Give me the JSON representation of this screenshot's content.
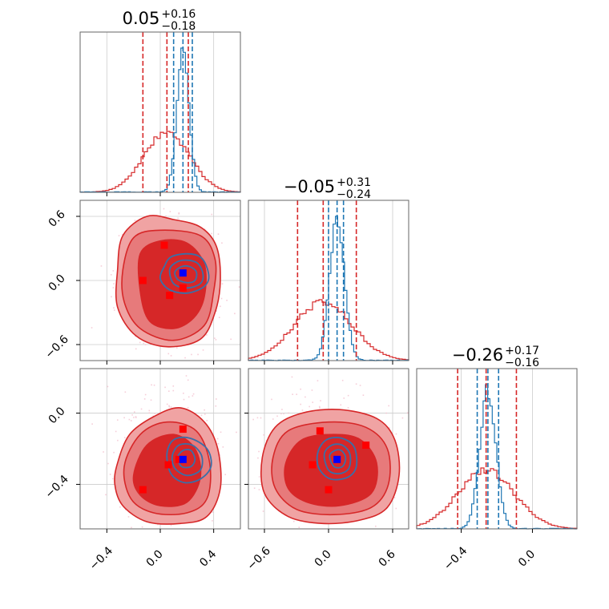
{
  "chart_data": {
    "type": "corner",
    "colors": {
      "set_a": "#d62728",
      "set_b": "#1f77b4",
      "set_a_light": "#f0a3a3",
      "set_a_mid": "#e77a7b",
      "marker_square": "#ff0000",
      "marker_truth": "#0000ff",
      "grid": "#cccccc"
    },
    "parameters": [
      {
        "title_value": "0.05",
        "title_plus": "+0.16",
        "title_minus": "−0.18",
        "range": [
          -0.6,
          0.6
        ],
        "ticks": [
          -0.4,
          0.0,
          0.4
        ],
        "tick_labels": [
          "−0.4",
          "0.0",
          "0.4"
        ],
        "dist_a": {
          "mean": 0.05,
          "sd": 0.17
        },
        "dist_b": {
          "mean": 0.17,
          "sd": 0.045
        },
        "quantiles_a": [
          -0.13,
          0.05,
          0.21
        ],
        "quantiles_b": [
          0.1,
          0.17,
          0.24
        ]
      },
      {
        "title_value": "−0.05",
        "title_plus": "+0.31",
        "title_minus": "−0.24",
        "range": [
          -0.75,
          0.75
        ],
        "ticks": [
          -0.6,
          0.0,
          0.6
        ],
        "tick_labels": [
          "−0.6",
          "0.0",
          "0.6"
        ],
        "dist_a": {
          "mean": -0.05,
          "sd": 0.27
        },
        "dist_b": {
          "mean": 0.08,
          "sd": 0.07
        },
        "quantiles_a": [
          -0.29,
          -0.05,
          0.26
        ],
        "quantiles_b": [
          0.0,
          0.08,
          0.14
        ]
      },
      {
        "title_value": "−0.26",
        "title_plus": "+0.17",
        "title_minus": "−0.16",
        "range": [
          -0.65,
          0.25
        ],
        "ticks": [
          -0.4,
          0.0
        ],
        "tick_labels": [
          "−0.4",
          "0.0"
        ],
        "dist_a": {
          "mean": -0.26,
          "sd": 0.16
        },
        "dist_b": {
          "mean": -0.25,
          "sd": 0.045
        },
        "quantiles_a": [
          -0.42,
          -0.26,
          -0.09
        ],
        "quantiles_b": [
          -0.31,
          -0.25,
          -0.19
        ]
      }
    ],
    "pairs": [
      {
        "x_param": 0,
        "y_param": 1,
        "truth": [
          0.17,
          0.07
        ],
        "markers": [
          [
            0.03,
            0.33
          ],
          [
            -0.13,
            0.0
          ],
          [
            0.07,
            -0.14
          ],
          [
            0.17,
            -0.07
          ]
        ],
        "contours_a": [
          [
            [
              -0.32,
              0.1
            ],
            [
              -0.28,
              0.42
            ],
            [
              -0.1,
              0.6
            ],
            [
              0.1,
              0.57
            ],
            [
              0.3,
              0.5
            ],
            [
              0.42,
              0.32
            ],
            [
              0.45,
              0.0
            ],
            [
              0.41,
              -0.3
            ],
            [
              0.3,
              -0.55
            ],
            [
              0.05,
              -0.62
            ],
            [
              -0.18,
              -0.52
            ],
            [
              -0.32,
              -0.25
            ]
          ],
          [
            [
              -0.28,
              0.1
            ],
            [
              -0.2,
              0.4
            ],
            [
              0.0,
              0.47
            ],
            [
              0.3,
              0.42
            ],
            [
              0.41,
              0.2
            ],
            [
              0.4,
              -0.1
            ],
            [
              0.33,
              -0.42
            ],
            [
              0.1,
              -0.56
            ],
            [
              -0.15,
              -0.45
            ],
            [
              -0.27,
              -0.2
            ]
          ],
          [
            [
              -0.15,
              0.25
            ],
            [
              0.0,
              0.37
            ],
            [
              0.2,
              0.35
            ],
            [
              0.33,
              0.15
            ],
            [
              0.33,
              -0.15
            ],
            [
              0.25,
              -0.35
            ],
            [
              0.1,
              -0.45
            ],
            [
              -0.08,
              -0.38
            ],
            [
              -0.15,
              -0.1
            ]
          ]
        ],
        "contours_b": [
          [
            [
              0.03,
              0.13
            ],
            [
              0.08,
              0.22
            ],
            [
              0.2,
              0.25
            ],
            [
              0.3,
              0.22
            ],
            [
              0.35,
              0.12
            ],
            [
              0.36,
              0.0
            ],
            [
              0.3,
              -0.08
            ],
            [
              0.18,
              -0.12
            ],
            [
              0.06,
              -0.08
            ],
            [
              0.0,
              0.02
            ]
          ],
          [
            [
              0.07,
              0.1
            ],
            [
              0.12,
              0.17
            ],
            [
              0.2,
              0.19
            ],
            [
              0.28,
              0.16
            ],
            [
              0.32,
              0.06
            ],
            [
              0.3,
              -0.03
            ],
            [
              0.2,
              -0.07
            ],
            [
              0.1,
              -0.03
            ]
          ],
          [
            [
              0.11,
              0.08
            ],
            [
              0.16,
              0.13
            ],
            [
              0.22,
              0.13
            ],
            [
              0.27,
              0.08
            ],
            [
              0.26,
              0.0
            ],
            [
              0.2,
              -0.02
            ],
            [
              0.13,
              0.01
            ]
          ]
        ]
      },
      {
        "x_param": 0,
        "y_param": 2,
        "truth": [
          0.17,
          -0.26
        ],
        "markers": [
          [
            0.17,
            -0.09
          ],
          [
            0.06,
            -0.29
          ],
          [
            -0.13,
            -0.43
          ],
          [
            0.14,
            -0.26
          ]
        ],
        "contours_a": [
          [
            [
              -0.32,
              -0.28
            ],
            [
              -0.23,
              -0.12
            ],
            [
              -0.05,
              -0.02
            ],
            [
              0.15,
              0.03
            ],
            [
              0.33,
              -0.05
            ],
            [
              0.43,
              -0.2
            ],
            [
              0.45,
              -0.42
            ],
            [
              0.35,
              -0.58
            ],
            [
              0.15,
              -0.62
            ],
            [
              -0.1,
              -0.61
            ],
            [
              -0.28,
              -0.52
            ],
            [
              -0.34,
              -0.4
            ]
          ],
          [
            [
              -0.27,
              -0.3
            ],
            [
              -0.15,
              -0.12
            ],
            [
              0.05,
              -0.05
            ],
            [
              0.27,
              -0.1
            ],
            [
              0.37,
              -0.28
            ],
            [
              0.35,
              -0.48
            ],
            [
              0.2,
              -0.56
            ],
            [
              -0.05,
              -0.56
            ],
            [
              -0.22,
              -0.48
            ]
          ],
          [
            [
              -0.2,
              -0.35
            ],
            [
              -0.1,
              -0.18
            ],
            [
              0.1,
              -0.12
            ],
            [
              0.26,
              -0.2
            ],
            [
              0.3,
              -0.36
            ],
            [
              0.2,
              -0.5
            ],
            [
              0.0,
              -0.52
            ],
            [
              -0.15,
              -0.46
            ]
          ]
        ],
        "contours_b": [
          [
            [
              0.05,
              -0.23
            ],
            [
              0.1,
              -0.15
            ],
            [
              0.22,
              -0.14
            ],
            [
              0.35,
              -0.2
            ],
            [
              0.38,
              -0.3
            ],
            [
              0.3,
              -0.37
            ],
            [
              0.18,
              -0.39
            ],
            [
              0.08,
              -0.34
            ]
          ],
          [
            [
              0.09,
              -0.24
            ],
            [
              0.14,
              -0.18
            ],
            [
              0.24,
              -0.18
            ],
            [
              0.31,
              -0.24
            ],
            [
              0.3,
              -0.32
            ],
            [
              0.2,
              -0.35
            ],
            [
              0.11,
              -0.31
            ]
          ],
          [
            [
              0.13,
              -0.25
            ],
            [
              0.17,
              -0.21
            ],
            [
              0.23,
              -0.21
            ],
            [
              0.26,
              -0.26
            ],
            [
              0.23,
              -0.3
            ],
            [
              0.16,
              -0.3
            ]
          ]
        ]
      },
      {
        "x_param": 1,
        "y_param": 2,
        "truth": [
          0.08,
          -0.26
        ],
        "markers": [
          [
            -0.08,
            -0.1
          ],
          [
            0.35,
            -0.18
          ],
          [
            -0.15,
            -0.29
          ],
          [
            0.0,
            -0.43
          ]
        ],
        "contours_a": [
          [
            [
              -0.62,
              -0.25
            ],
            [
              -0.5,
              -0.08
            ],
            [
              -0.25,
              0.0
            ],
            [
              0.1,
              0.02
            ],
            [
              0.45,
              -0.03
            ],
            [
              0.62,
              -0.15
            ],
            [
              0.66,
              -0.35
            ],
            [
              0.55,
              -0.53
            ],
            [
              0.3,
              -0.6
            ],
            [
              -0.05,
              -0.62
            ],
            [
              -0.38,
              -0.58
            ],
            [
              -0.6,
              -0.45
            ]
          ],
          [
            [
              -0.52,
              -0.25
            ],
            [
              -0.38,
              -0.1
            ],
            [
              0.0,
              -0.05
            ],
            [
              0.35,
              -0.08
            ],
            [
              0.55,
              -0.2
            ],
            [
              0.56,
              -0.4
            ],
            [
              0.4,
              -0.53
            ],
            [
              0.05,
              -0.57
            ],
            [
              -0.3,
              -0.54
            ],
            [
              -0.5,
              -0.42
            ]
          ],
          [
            [
              -0.4,
              -0.28
            ],
            [
              -0.25,
              -0.15
            ],
            [
              0.05,
              -0.12
            ],
            [
              0.3,
              -0.15
            ],
            [
              0.45,
              -0.28
            ],
            [
              0.4,
              -0.45
            ],
            [
              0.1,
              -0.52
            ],
            [
              -0.2,
              -0.5
            ],
            [
              -0.38,
              -0.42
            ]
          ]
        ],
        "contours_b": [
          [
            [
              -0.1,
              -0.22
            ],
            [
              -0.02,
              -0.15
            ],
            [
              0.12,
              -0.14
            ],
            [
              0.24,
              -0.19
            ],
            [
              0.26,
              -0.3
            ],
            [
              0.18,
              -0.36
            ],
            [
              0.02,
              -0.37
            ],
            [
              -0.09,
              -0.31
            ]
          ],
          [
            [
              -0.04,
              -0.23
            ],
            [
              0.03,
              -0.18
            ],
            [
              0.13,
              -0.18
            ],
            [
              0.2,
              -0.23
            ],
            [
              0.19,
              -0.31
            ],
            [
              0.1,
              -0.34
            ],
            [
              0.0,
              -0.32
            ]
          ],
          [
            [
              0.01,
              -0.24
            ],
            [
              0.06,
              -0.21
            ],
            [
              0.12,
              -0.21
            ],
            [
              0.16,
              -0.25
            ],
            [
              0.13,
              -0.3
            ],
            [
              0.05,
              -0.3
            ]
          ]
        ]
      }
    ]
  }
}
